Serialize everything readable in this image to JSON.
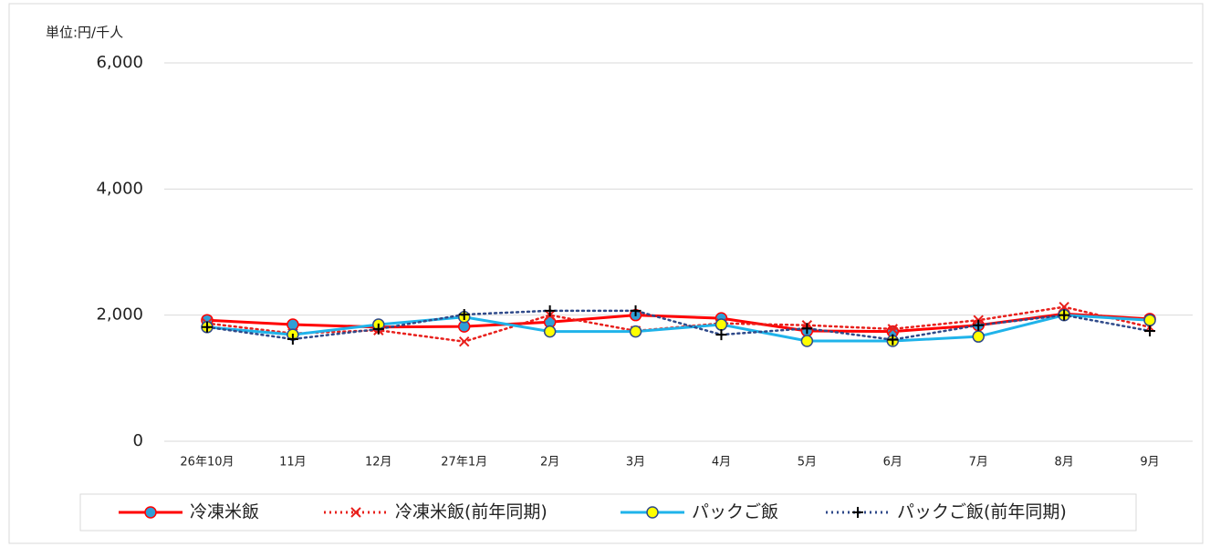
{
  "chart_data": {
    "type": "line",
    "y_label": "単位:円/千人",
    "categories": [
      "26年10月",
      "11月",
      "12月",
      "27年1月",
      "2月",
      "3月",
      "4月",
      "5月",
      "6月",
      "7月",
      "8月",
      "9月"
    ],
    "series": [
      {
        "name": "冷凍米飯",
        "color": "#ff0000",
        "line_style": "solid",
        "marker": "circle",
        "marker_fill": "#2e9fd6",
        "values": [
          1920,
          1850,
          1810,
          1820,
          1890,
          2000,
          1950,
          1750,
          1740,
          1840,
          2020,
          1940
        ]
      },
      {
        "name": "冷凍米飯(前年同期)",
        "color": "#e8201c",
        "line_style": "dotted",
        "marker": "x",
        "values": [
          1870,
          1710,
          1760,
          1580,
          2000,
          1750,
          1870,
          1840,
          1780,
          1920,
          2130,
          1810
        ]
      },
      {
        "name": "パックご飯",
        "color": "#1fb3ea",
        "line_style": "solid",
        "marker": "circle",
        "marker_fill": "#ffff00",
        "values": [
          1810,
          1690,
          1850,
          1970,
          1740,
          1740,
          1850,
          1590,
          1590,
          1660,
          2000,
          1920
        ]
      },
      {
        "name": "パックご飯(前年同期)",
        "color": "#2f4a8a",
        "line_style": "dotted",
        "marker": "plus",
        "values": [
          1810,
          1620,
          1780,
          2010,
          2070,
          2070,
          1690,
          1790,
          1610,
          1840,
          2000,
          1750
        ]
      }
    ],
    "ylim": [
      0,
      6000
    ],
    "yticks": [
      0,
      {
        "value": 2000,
        "label": "2,000"
      },
      {
        "value": 4000,
        "label": "4,000"
      },
      {
        "value": 6000,
        "label": "6,000"
      }
    ],
    "grid": true,
    "legend": "bottom"
  }
}
